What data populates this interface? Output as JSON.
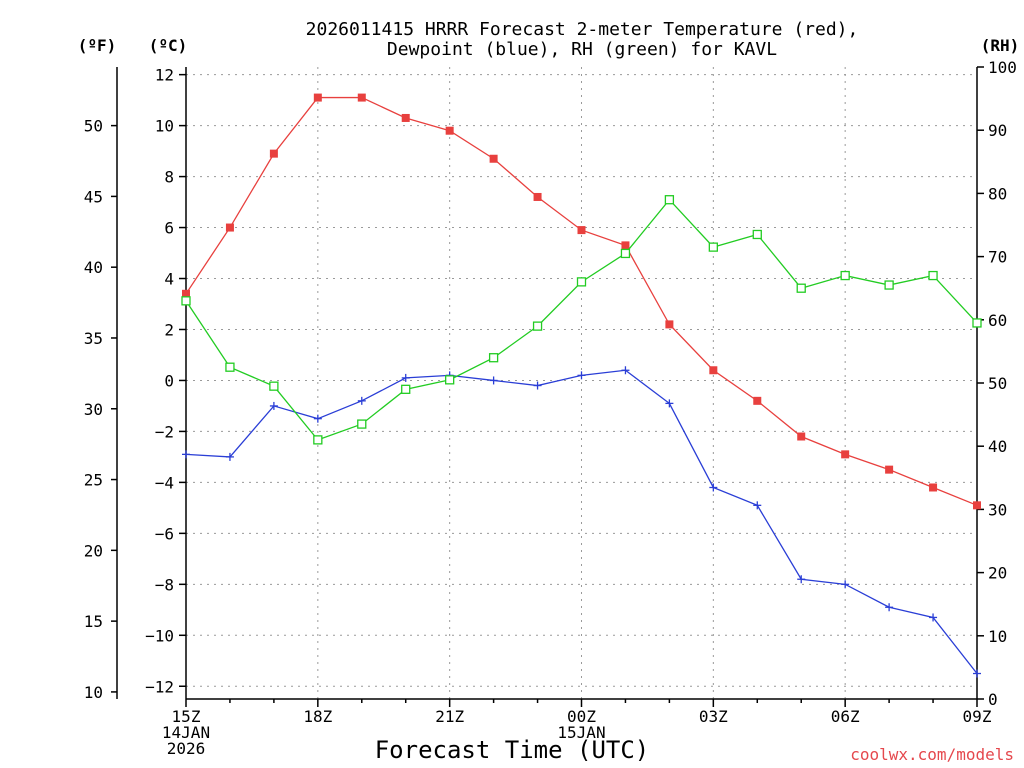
{
  "chart_data": {
    "type": "line",
    "title": [
      "2026011415 HRRR Forecast 2-meter Temperature (red),",
      "Dewpoint (blue), RH (green) for KAVL"
    ],
    "xlabel": "Forecast Time (UTC)",
    "credit": "coolwx.com/models",
    "unit_labels": {
      "fahrenheit": "(ºF)",
      "celsius": "(ºC)",
      "rh": "(RH)"
    },
    "x_hours": [
      0,
      1,
      2,
      3,
      4,
      5,
      6,
      7,
      8,
      9,
      10,
      11,
      12,
      13,
      14,
      15,
      16,
      17,
      18
    ],
    "x_ticks": [
      {
        "hour": 0,
        "lines": [
          "15Z",
          "14JAN",
          "2026"
        ]
      },
      {
        "hour": 3,
        "lines": [
          "18Z"
        ]
      },
      {
        "hour": 6,
        "lines": [
          "21Z"
        ]
      },
      {
        "hour": 9,
        "lines": [
          "00Z",
          "15JAN"
        ]
      },
      {
        "hour": 12,
        "lines": [
          "03Z"
        ]
      },
      {
        "hour": 15,
        "lines": [
          "06Z"
        ]
      },
      {
        "hour": 18,
        "lines": [
          "09Z"
        ]
      }
    ],
    "y_celsius": {
      "range": [
        -12.5,
        12.3
      ],
      "ticks": [
        12,
        10,
        8,
        6,
        4,
        2,
        0,
        -2,
        -4,
        -6,
        -8,
        -10,
        -12
      ],
      "tick_labels": [
        "12",
        "10",
        "8",
        "6",
        "4",
        "2",
        "0",
        "−2",
        "−4",
        "−6",
        "−8",
        "−10",
        "−12"
      ]
    },
    "y_fahrenheit": {
      "ticks": [
        50,
        45,
        40,
        35,
        30,
        25,
        20,
        15,
        10
      ],
      "tick_labels": [
        "50",
        "45",
        "40",
        "35",
        "30",
        "25",
        "20",
        "15",
        "10"
      ]
    },
    "y_rh": {
      "range": [
        0,
        100
      ],
      "ticks": [
        100,
        90,
        80,
        70,
        60,
        50,
        40,
        30,
        20,
        10,
        0
      ],
      "tick_labels": [
        "100",
        "90",
        "80",
        "70",
        "60",
        "50",
        "40",
        "30",
        "20",
        "10",
        "0"
      ]
    },
    "series": [
      {
        "name": "Temperature",
        "axis": "celsius",
        "color": "#e8403e",
        "marker": "filled-square",
        "values": [
          3.4,
          6.0,
          8.9,
          11.1,
          11.1,
          10.3,
          9.8,
          8.7,
          7.2,
          5.9,
          5.3,
          2.2,
          0.4,
          -0.8,
          -2.2,
          -2.9,
          -3.5,
          -4.2,
          -4.9
        ]
      },
      {
        "name": "Dewpoint",
        "axis": "celsius",
        "color": "#2a3ed6",
        "marker": "plus",
        "values": [
          -2.9,
          -3.0,
          -1.0,
          -1.5,
          -0.8,
          0.1,
          0.2,
          0.0,
          -0.2,
          0.2,
          0.4,
          -0.9,
          -4.2,
          -4.9,
          -7.8,
          -8.0,
          -8.9,
          -9.3,
          -11.5
        ]
      },
      {
        "name": "RH",
        "axis": "rh",
        "color": "#22cc22",
        "marker": "open-square",
        "values": [
          63,
          52.5,
          49.5,
          41,
          43.5,
          49,
          50.5,
          54,
          59,
          66,
          70.5,
          79,
          71.5,
          73.5,
          65,
          67,
          65.5,
          67,
          59.5
        ]
      }
    ]
  }
}
